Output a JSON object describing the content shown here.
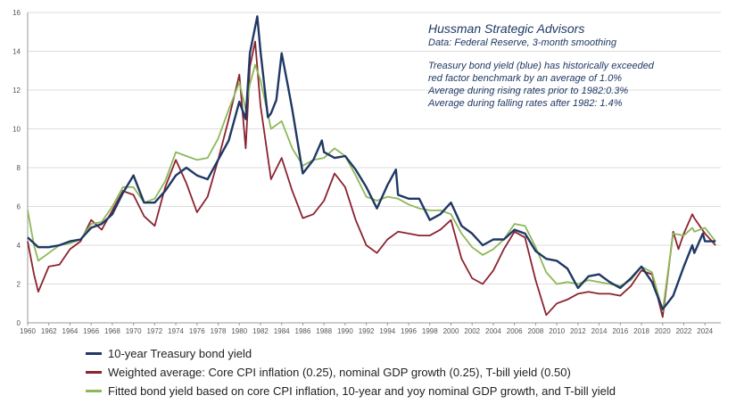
{
  "annotation": {
    "brand": "Hussman Strategic Advisors",
    "source": "Data: Federal Reserve, 3-month smoothing",
    "lines": [
      "Treasury bond yield (blue) has historically exceeded",
      "red factor benchmark by an average of 1.0%",
      "Average during rising rates prior to 1982:0.3%",
      "Average during falling rates after 1982: 1.4%"
    ]
  },
  "colors": {
    "blue": "#1f3864",
    "red": "#8b2330",
    "green": "#8db859",
    "grid": "#dddddd",
    "axis": "#999999"
  },
  "chart_data": {
    "type": "line",
    "grid": "horizontal",
    "legend_position": "bottom-left",
    "xlim": [
      1960,
      2025.5
    ],
    "ylim": [
      0,
      16
    ],
    "x_ticks": [
      1960,
      1962,
      1964,
      1966,
      1968,
      1970,
      1972,
      1974,
      1976,
      1978,
      1980,
      1982,
      1984,
      1986,
      1988,
      1990,
      1992,
      1994,
      1996,
      1998,
      2000,
      2002,
      2004,
      2006,
      2008,
      2010,
      2012,
      2014,
      2016,
      2018,
      2020,
      2022,
      2024
    ],
    "y_ticks": [
      0,
      2,
      4,
      6,
      8,
      10,
      12,
      14,
      16
    ],
    "series": [
      {
        "name": "10-year Treasury bond yield",
        "color": "blue",
        "points": [
          [
            1960,
            4.4
          ],
          [
            1961,
            3.9
          ],
          [
            1962,
            3.9
          ],
          [
            1963,
            4.0
          ],
          [
            1964,
            4.2
          ],
          [
            1965,
            4.3
          ],
          [
            1966,
            4.9
          ],
          [
            1967,
            5.1
          ],
          [
            1968,
            5.6
          ],
          [
            1969,
            6.7
          ],
          [
            1970,
            7.6
          ],
          [
            1971,
            6.2
          ],
          [
            1972,
            6.2
          ],
          [
            1973,
            6.8
          ],
          [
            1974,
            7.6
          ],
          [
            1975,
            8.0
          ],
          [
            1976,
            7.6
          ],
          [
            1977,
            7.4
          ],
          [
            1978,
            8.4
          ],
          [
            1979,
            9.4
          ],
          [
            1980,
            11.4
          ],
          [
            1980.6,
            10.5
          ],
          [
            1981,
            13.9
          ],
          [
            1981.7,
            15.8
          ],
          [
            1982,
            14.0
          ],
          [
            1982.7,
            10.6
          ],
          [
            1983,
            10.8
          ],
          [
            1983.5,
            11.5
          ],
          [
            1984,
            13.9
          ],
          [
            1984.6,
            12.2
          ],
          [
            1985,
            11.0
          ],
          [
            1986,
            7.7
          ],
          [
            1987,
            8.4
          ],
          [
            1987.8,
            9.4
          ],
          [
            1988,
            8.8
          ],
          [
            1989,
            8.5
          ],
          [
            1990,
            8.6
          ],
          [
            1991,
            7.9
          ],
          [
            1992,
            7.0
          ],
          [
            1993,
            5.9
          ],
          [
            1994,
            7.1
          ],
          [
            1994.8,
            7.9
          ],
          [
            1995,
            6.6
          ],
          [
            1996,
            6.4
          ],
          [
            1997,
            6.4
          ],
          [
            1998,
            5.3
          ],
          [
            1999,
            5.6
          ],
          [
            2000,
            6.2
          ],
          [
            2001,
            5.0
          ],
          [
            2002,
            4.6
          ],
          [
            2003,
            4.0
          ],
          [
            2004,
            4.3
          ],
          [
            2005,
            4.3
          ],
          [
            2006,
            4.8
          ],
          [
            2007,
            4.6
          ],
          [
            2008,
            3.7
          ],
          [
            2009,
            3.3
          ],
          [
            2010,
            3.2
          ],
          [
            2011,
            2.8
          ],
          [
            2012,
            1.8
          ],
          [
            2013,
            2.4
          ],
          [
            2014,
            2.5
          ],
          [
            2015,
            2.1
          ],
          [
            2016,
            1.8
          ],
          [
            2017,
            2.3
          ],
          [
            2018,
            2.9
          ],
          [
            2019,
            2.1
          ],
          [
            2020,
            0.7
          ],
          [
            2021,
            1.4
          ],
          [
            2022,
            2.9
          ],
          [
            2022.8,
            4.0
          ],
          [
            2023,
            3.6
          ],
          [
            2023.8,
            4.6
          ],
          [
            2024,
            4.2
          ],
          [
            2025,
            4.2
          ]
        ]
      },
      {
        "name": "Weighted average: Core CPI inflation (0.25), nominal GDP growth (0.25), T-bill yield (0.50)",
        "color": "red",
        "points": [
          [
            1960,
            4.2
          ],
          [
            1960.6,
            2.5
          ],
          [
            1961,
            1.6
          ],
          [
            1962,
            2.9
          ],
          [
            1963,
            3.0
          ],
          [
            1964,
            3.8
          ],
          [
            1965,
            4.2
          ],
          [
            1966,
            5.3
          ],
          [
            1967,
            4.8
          ],
          [
            1968,
            5.8
          ],
          [
            1969,
            6.8
          ],
          [
            1970,
            6.6
          ],
          [
            1971,
            5.5
          ],
          [
            1972,
            5.0
          ],
          [
            1973,
            7.0
          ],
          [
            1974,
            8.4
          ],
          [
            1975,
            7.2
          ],
          [
            1976,
            5.7
          ],
          [
            1977,
            6.5
          ],
          [
            1978,
            8.4
          ],
          [
            1979,
            10.5
          ],
          [
            1980,
            12.8
          ],
          [
            1980.6,
            9.0
          ],
          [
            1981,
            13.2
          ],
          [
            1981.5,
            14.5
          ],
          [
            1982,
            11.2
          ],
          [
            1983,
            7.4
          ],
          [
            1984,
            8.5
          ],
          [
            1985,
            6.8
          ],
          [
            1986,
            5.4
          ],
          [
            1987,
            5.6
          ],
          [
            1988,
            6.3
          ],
          [
            1989,
            7.7
          ],
          [
            1990,
            7.0
          ],
          [
            1991,
            5.3
          ],
          [
            1992,
            4.0
          ],
          [
            1993,
            3.6
          ],
          [
            1994,
            4.3
          ],
          [
            1995,
            4.7
          ],
          [
            1996,
            4.6
          ],
          [
            1997,
            4.5
          ],
          [
            1998,
            4.5
          ],
          [
            1999,
            4.8
          ],
          [
            2000,
            5.3
          ],
          [
            2001,
            3.3
          ],
          [
            2002,
            2.3
          ],
          [
            2003,
            2.0
          ],
          [
            2004,
            2.7
          ],
          [
            2005,
            3.8
          ],
          [
            2006,
            4.7
          ],
          [
            2007,
            4.4
          ],
          [
            2008,
            2.2
          ],
          [
            2009,
            0.4
          ],
          [
            2010,
            1.0
          ],
          [
            2011,
            1.2
          ],
          [
            2012,
            1.5
          ],
          [
            2013,
            1.6
          ],
          [
            2014,
            1.5
          ],
          [
            2015,
            1.5
          ],
          [
            2016,
            1.4
          ],
          [
            2017,
            1.9
          ],
          [
            2018,
            2.7
          ],
          [
            2019,
            2.5
          ],
          [
            2020,
            0.3
          ],
          [
            2021,
            4.7
          ],
          [
            2021.5,
            3.8
          ],
          [
            2022,
            4.6
          ],
          [
            2022.8,
            5.6
          ],
          [
            2023,
            5.4
          ],
          [
            2024,
            4.6
          ],
          [
            2025,
            4.0
          ]
        ]
      },
      {
        "name": "Fitted bond yield based on core CPI inflation, 10-year and yoy nominal GDP growth, and T-bill yield",
        "color": "green",
        "points": [
          [
            1960,
            5.8
          ],
          [
            1960.6,
            4.0
          ],
          [
            1961,
            3.2
          ],
          [
            1962,
            3.6
          ],
          [
            1963,
            4.0
          ],
          [
            1964,
            4.1
          ],
          [
            1965,
            4.3
          ],
          [
            1966,
            5.1
          ],
          [
            1967,
            5.2
          ],
          [
            1968,
            6.0
          ],
          [
            1969,
            7.0
          ],
          [
            1970,
            7.0
          ],
          [
            1971,
            6.2
          ],
          [
            1972,
            6.4
          ],
          [
            1973,
            7.3
          ],
          [
            1974,
            8.8
          ],
          [
            1975,
            8.6
          ],
          [
            1976,
            8.4
          ],
          [
            1977,
            8.5
          ],
          [
            1978,
            9.5
          ],
          [
            1979,
            11.0
          ],
          [
            1980,
            12.4
          ],
          [
            1980.6,
            11.0
          ],
          [
            1981,
            12.3
          ],
          [
            1981.5,
            13.3
          ],
          [
            1982,
            12.5
          ],
          [
            1983,
            10.0
          ],
          [
            1984,
            10.4
          ],
          [
            1985,
            9.0
          ],
          [
            1986,
            8.1
          ],
          [
            1987,
            8.4
          ],
          [
            1988,
            8.5
          ],
          [
            1989,
            9.0
          ],
          [
            1990,
            8.6
          ],
          [
            1991,
            7.6
          ],
          [
            1992,
            6.5
          ],
          [
            1993,
            6.3
          ],
          [
            1994,
            6.5
          ],
          [
            1995,
            6.4
          ],
          [
            1996,
            6.1
          ],
          [
            1997,
            5.9
          ],
          [
            1998,
            5.8
          ],
          [
            1999,
            5.8
          ],
          [
            2000,
            5.6
          ],
          [
            2001,
            4.6
          ],
          [
            2002,
            3.9
          ],
          [
            2003,
            3.5
          ],
          [
            2004,
            3.8
          ],
          [
            2005,
            4.3
          ],
          [
            2006,
            5.1
          ],
          [
            2007,
            5.0
          ],
          [
            2008,
            3.9
          ],
          [
            2009,
            2.6
          ],
          [
            2010,
            2.0
          ],
          [
            2011,
            2.1
          ],
          [
            2012,
            2.0
          ],
          [
            2013,
            2.2
          ],
          [
            2014,
            2.1
          ],
          [
            2015,
            2.0
          ],
          [
            2016,
            1.9
          ],
          [
            2017,
            2.2
          ],
          [
            2018,
            2.9
          ],
          [
            2019,
            2.6
          ],
          [
            2020,
            0.6
          ],
          [
            2021,
            4.6
          ],
          [
            2022,
            4.5
          ],
          [
            2022.8,
            4.9
          ],
          [
            2023,
            4.7
          ],
          [
            2024,
            4.9
          ],
          [
            2025,
            4.2
          ]
        ]
      }
    ]
  }
}
